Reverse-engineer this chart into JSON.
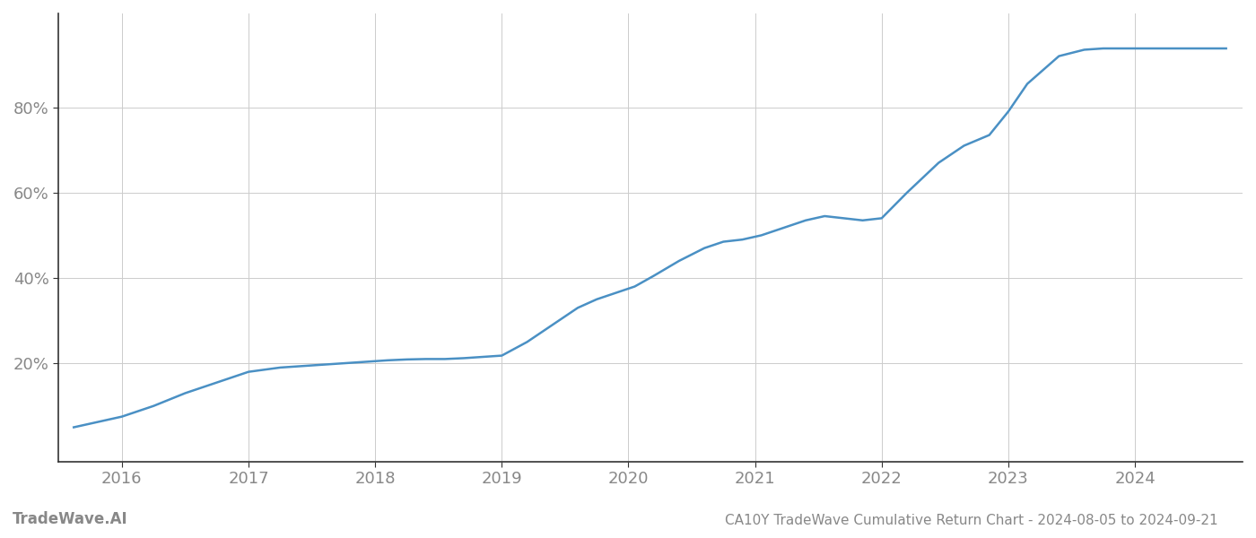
{
  "title": "CA10Y TradeWave Cumulative Return Chart - 2024-08-05 to 2024-09-21",
  "watermark": "TradeWave.AI",
  "line_color": "#4a90c4",
  "background_color": "#ffffff",
  "grid_color": "#cccccc",
  "x_years": [
    2015.62,
    2016.0,
    2016.25,
    2016.5,
    2016.75,
    2017.0,
    2017.25,
    2017.5,
    2017.75,
    2018.0,
    2018.1,
    2018.25,
    2018.4,
    2018.55,
    2018.7,
    2018.85,
    2019.0,
    2019.2,
    2019.4,
    2019.6,
    2019.75,
    2019.9,
    2020.05,
    2020.2,
    2020.4,
    2020.6,
    2020.75,
    2020.9,
    2021.05,
    2021.2,
    2021.4,
    2021.55,
    2021.7,
    2021.85,
    2022.0,
    2022.2,
    2022.45,
    2022.65,
    2022.85,
    2023.0,
    2023.15,
    2023.4,
    2023.6,
    2023.75,
    2023.9,
    2024.0,
    2024.15,
    2024.4,
    2024.72
  ],
  "y_values": [
    5.0,
    7.5,
    10.0,
    13.0,
    15.5,
    18.0,
    19.0,
    19.5,
    20.0,
    20.5,
    20.7,
    20.9,
    21.0,
    21.0,
    21.2,
    21.5,
    21.8,
    25.0,
    29.0,
    33.0,
    35.0,
    36.5,
    38.0,
    40.5,
    44.0,
    47.0,
    48.5,
    49.0,
    50.0,
    51.5,
    53.5,
    54.5,
    54.0,
    53.5,
    54.0,
    60.0,
    67.0,
    71.0,
    73.5,
    79.0,
    85.5,
    92.0,
    93.5,
    93.8,
    93.8,
    93.8,
    93.8,
    93.8,
    93.8
  ],
  "xlim": [
    2015.5,
    2024.85
  ],
  "ylim": [
    -3,
    102
  ],
  "yticks": [
    20,
    40,
    60,
    80
  ],
  "ytick_labels": [
    "20%",
    "40%",
    "60%",
    "80%"
  ],
  "xticks": [
    2016,
    2017,
    2018,
    2019,
    2020,
    2021,
    2022,
    2023,
    2024
  ],
  "xtick_labels": [
    "2016",
    "2017",
    "2018",
    "2019",
    "2020",
    "2021",
    "2022",
    "2023",
    "2024"
  ],
  "tick_color": "#888888",
  "axis_color": "#333333",
  "line_width": 1.8,
  "title_fontsize": 11,
  "tick_fontsize": 13,
  "watermark_fontsize": 12
}
